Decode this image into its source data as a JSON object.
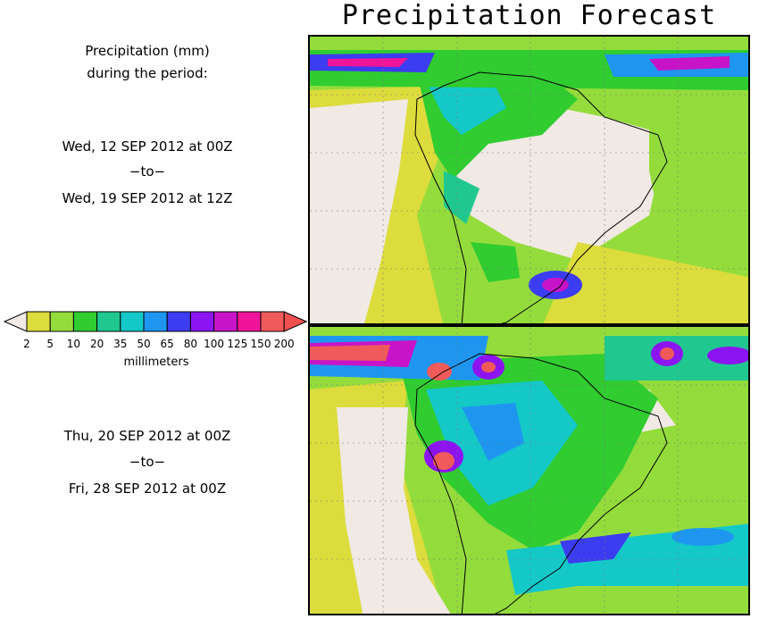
{
  "title": "Precipitation Forecast",
  "header_text": {
    "line1": "Precipitation (mm)",
    "line2": "during the period:"
  },
  "period1": {
    "start": "Wed, 12 SEP 2012 at 00Z",
    "sep": "−to−",
    "end": "Wed, 19 SEP 2012 at 12Z"
  },
  "period2": {
    "start": "Thu, 20 SEP 2012 at 00Z",
    "sep": "−to−",
    "end": "Fri, 28 SEP 2012 at 00Z"
  },
  "legend": {
    "units": "millimeters",
    "thresholds": [
      "2",
      "5",
      "10",
      "20",
      "35",
      "50",
      "65",
      "80",
      "100",
      "125",
      "150",
      "200"
    ],
    "colors": [
      "#f1e9e4",
      "#dcdc3c",
      "#94dc3c",
      "#30cc30",
      "#20c890",
      "#14c8c8",
      "#1e96f0",
      "#3c3cf0",
      "#8c14f0",
      "#c814c8",
      "#f0149a",
      "#f05a5a",
      "#f05050"
    ]
  }
}
